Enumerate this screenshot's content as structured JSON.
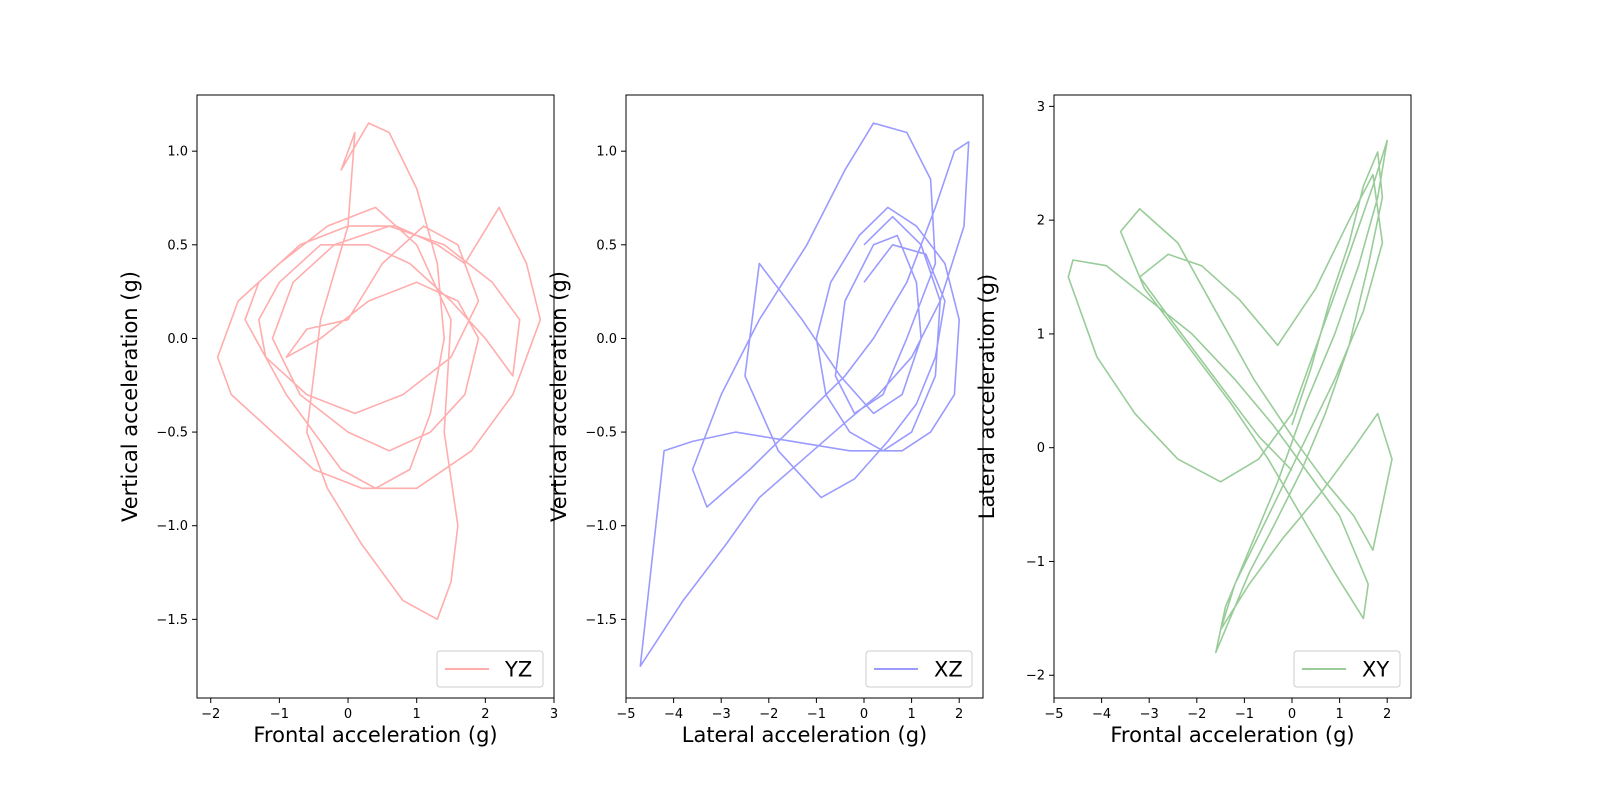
{
  "colors": {
    "yz": "#ffadad",
    "xz": "#9b9bff",
    "xy": "#99cc99"
  },
  "chart_data": [
    {
      "type": "line",
      "xlabel": "Frontal acceleration (g)",
      "ylabel": "Vertical acceleration  (g)",
      "xlim": [
        -2.2,
        3.0
      ],
      "ylim": [
        -1.92,
        1.3
      ],
      "xticks": [
        -2,
        -1,
        0,
        1,
        2,
        3
      ],
      "xtick_labels": [
        "−2",
        "−1",
        "0",
        "1",
        "2",
        "3"
      ],
      "yticks": [
        -1.5,
        -1.0,
        -0.5,
        0.0,
        0.5,
        1.0
      ],
      "ytick_labels": [
        "−1.5",
        "−1.0",
        "−0.5",
        "0.0",
        "0.5",
        "1.0"
      ],
      "legend_position": "lower-right",
      "series": [
        {
          "name": "YZ",
          "color": "#ffadad",
          "x": [
            0.0,
            0.5,
            1.1,
            1.6,
            1.9,
            1.5,
            0.8,
            0.1,
            -0.6,
            -1.2,
            -1.5,
            -1.3,
            -0.7,
            0.0,
            0.7,
            1.3,
            1.7,
            2.2,
            2.6,
            2.8,
            2.4,
            1.8,
            1.0,
            0.2,
            -0.5,
            -1.1,
            -1.7,
            -1.9,
            -1.6,
            -1.0,
            -0.3,
            0.4,
            1.0,
            1.5,
            1.4,
            1.6,
            1.5,
            1.3,
            0.8,
            0.2,
            -0.3,
            -0.6,
            -0.4,
            0.0,
            0.1,
            -0.1,
            0.3,
            0.6,
            1.0,
            1.3,
            1.4,
            1.2,
            0.9,
            0.4,
            -0.1,
            -0.5,
            -0.9,
            -1.2,
            -1.3,
            -1.0,
            -0.4,
            0.3,
            0.9,
            1.5,
            2.0,
            2.4,
            2.5,
            2.1,
            1.4,
            0.6,
            -0.2,
            -0.8,
            -1.1,
            -0.7,
            0.0,
            0.6,
            1.2,
            1.7,
            1.9,
            1.6,
            1.0,
            0.3,
            -0.4,
            -0.9,
            -0.6,
            0.0
          ],
          "y": [
            0.1,
            0.4,
            0.6,
            0.5,
            0.2,
            -0.1,
            -0.3,
            -0.4,
            -0.3,
            -0.1,
            0.1,
            0.3,
            0.5,
            0.6,
            0.6,
            0.5,
            0.4,
            0.7,
            0.4,
            0.1,
            -0.3,
            -0.6,
            -0.8,
            -0.8,
            -0.7,
            -0.5,
            -0.3,
            -0.1,
            0.2,
            0.4,
            0.6,
            0.7,
            0.5,
            0.1,
            -0.5,
            -1.0,
            -1.3,
            -1.5,
            -1.4,
            -1.1,
            -0.8,
            -0.5,
            0.1,
            0.6,
            1.1,
            0.9,
            1.15,
            1.1,
            0.8,
            0.4,
            0.0,
            -0.4,
            -0.7,
            -0.8,
            -0.7,
            -0.5,
            -0.3,
            -0.1,
            0.1,
            0.3,
            0.5,
            0.5,
            0.4,
            0.2,
            0.0,
            -0.2,
            0.1,
            0.3,
            0.5,
            0.6,
            0.5,
            0.3,
            0.0,
            -0.3,
            -0.5,
            -0.6,
            -0.5,
            -0.3,
            0.0,
            0.2,
            0.3,
            0.2,
            0.0,
            -0.1,
            0.05,
            0.1
          ]
        }
      ]
    },
    {
      "type": "line",
      "xlabel": "Lateral acceleration (g)",
      "ylabel": "Vertical acceleration  (g)",
      "xlim": [
        -5.0,
        2.5
      ],
      "ylim": [
        -1.92,
        1.3
      ],
      "xticks": [
        -5,
        -4,
        -3,
        -2,
        -1,
        0,
        1,
        2
      ],
      "xtick_labels": [
        "−5",
        "−4",
        "−3",
        "−2",
        "−1",
        "0",
        "1",
        "2"
      ],
      "yticks": [
        -1.5,
        -1.0,
        -0.5,
        0.0,
        0.5,
        1.0
      ],
      "ytick_labels": [
        "−1.5",
        "−1.0",
        "−0.5",
        "0.0",
        "0.5",
        "1.0"
      ],
      "legend_position": "lower-right",
      "series": [
        {
          "name": "XZ",
          "color": "#9b9bff",
          "x": [
            0.0,
            0.6,
            1.2,
            1.6,
            1.5,
            1.0,
            0.4,
            -0.3,
            -0.8,
            -1.0,
            -0.7,
            -0.1,
            0.5,
            1.1,
            1.7,
            2.0,
            1.9,
            1.4,
            0.8,
            -0.3,
            -1.5,
            -2.7,
            -3.6,
            -4.2,
            -4.7,
            -3.8,
            -2.9,
            -2.2,
            -1.3,
            -0.4,
            0.3,
            1.0,
            1.6,
            2.1,
            2.2,
            1.9,
            1.5,
            0.9,
            0.2,
            -0.4,
            -1.4,
            -2.4,
            -3.3,
            -3.6,
            -3.0,
            -2.2,
            -1.2,
            -0.4,
            0.2,
            0.9,
            1.4,
            1.5,
            0.9,
            0.4,
            -0.2,
            -0.6,
            -0.4,
            0.2,
            0.7,
            1.1,
            1.2,
            0.8,
            0.2,
            -0.5,
            -1.3,
            -2.2,
            -2.5,
            -1.8,
            -0.9,
            -0.2,
            0.5,
            1.1,
            1.5,
            1.7,
            1.3,
            0.6,
            0.0
          ],
          "y": [
            0.5,
            0.65,
            0.5,
            0.2,
            -0.2,
            -0.5,
            -0.6,
            -0.5,
            -0.3,
            0.0,
            0.3,
            0.55,
            0.7,
            0.6,
            0.4,
            0.1,
            -0.3,
            -0.5,
            -0.6,
            -0.6,
            -0.55,
            -0.5,
            -0.55,
            -0.6,
            -1.75,
            -1.4,
            -1.1,
            -0.85,
            -0.65,
            -0.45,
            -0.3,
            -0.1,
            0.2,
            0.6,
            1.05,
            1.0,
            0.7,
            0.3,
            0.0,
            -0.2,
            -0.45,
            -0.7,
            -0.9,
            -0.7,
            -0.3,
            0.1,
            0.5,
            0.9,
            1.15,
            1.1,
            0.85,
            0.4,
            0.0,
            -0.3,
            -0.4,
            -0.2,
            0.2,
            0.5,
            0.55,
            0.3,
            0.0,
            -0.3,
            -0.4,
            -0.2,
            0.1,
            0.4,
            -0.2,
            -0.6,
            -0.85,
            -0.75,
            -0.55,
            -0.35,
            -0.1,
            0.2,
            0.45,
            0.5,
            0.3
          ]
        }
      ]
    },
    {
      "type": "line",
      "xlabel": "Frontal acceleration  (g)",
      "ylabel": "Lateral acceleration (g)",
      "xlim": [
        -5.0,
        2.5
      ],
      "ylim": [
        -2.2,
        3.1
      ],
      "xticks": [
        -5,
        -4,
        -3,
        -2,
        -1,
        0,
        1,
        2
      ],
      "xtick_labels": [
        "−5",
        "−4",
        "−3",
        "−2",
        "−1",
        "0",
        "1",
        "2"
      ],
      "yticks": [
        -2,
        -1,
        0,
        1,
        2,
        3
      ],
      "ytick_labels": [
        "−2",
        "−1",
        "0",
        "1",
        "2",
        "3"
      ],
      "legend_position": "lower-right",
      "series": [
        {
          "name": "XY",
          "color": "#99cc99",
          "x": [
            0.0,
            0.4,
            0.8,
            1.2,
            1.5,
            1.8,
            1.9,
            1.6,
            1.2,
            0.7,
            0.2,
            -0.4,
            -0.9,
            -1.3,
            -1.6,
            -1.4,
            -0.9,
            -0.3,
            0.3,
            0.9,
            1.4,
            1.8,
            2.0,
            1.7,
            1.2,
            0.6,
            0.0,
            -0.7,
            -1.5,
            -2.4,
            -3.3,
            -4.1,
            -4.7,
            -4.6,
            -3.9,
            -3.0,
            -2.1,
            -1.2,
            -0.4,
            0.3,
            1.0,
            1.6,
            1.5,
            0.9,
            0.2,
            -0.5,
            -1.3,
            -2.2,
            -3.1,
            -3.6,
            -3.2,
            -2.4,
            -1.6,
            -0.8,
            0.0,
            0.7,
            1.3,
            1.7,
            2.1,
            1.8,
            1.3,
            0.6,
            -0.2,
            -0.9,
            -1.5,
            -1.2,
            -0.5,
            0.2,
            0.9,
            1.5,
            1.9,
            1.7,
            1.2,
            0.5,
            -0.3,
            -1.1,
            -1.9,
            -2.6,
            -3.2,
            -2.5,
            -1.6,
            -0.7,
            0.0
          ],
          "y": [
            0.2,
            0.7,
            1.3,
            1.8,
            2.3,
            2.6,
            2.2,
            1.6,
            0.9,
            0.3,
            -0.2,
            -0.7,
            -1.1,
            -1.5,
            -1.8,
            -1.4,
            -0.9,
            -0.3,
            0.4,
            1.0,
            1.6,
            2.2,
            2.7,
            2.3,
            1.7,
            1.0,
            0.3,
            -0.1,
            -0.3,
            -0.1,
            0.3,
            0.8,
            1.5,
            1.65,
            1.6,
            1.3,
            1.0,
            0.6,
            0.2,
            -0.2,
            -0.6,
            -1.2,
            -1.5,
            -1.1,
            -0.6,
            -0.1,
            0.4,
            0.9,
            1.4,
            1.9,
            2.1,
            1.8,
            1.2,
            0.6,
            0.1,
            -0.3,
            -0.6,
            -0.9,
            -0.1,
            0.3,
            0.0,
            -0.4,
            -0.8,
            -1.2,
            -1.6,
            -1.2,
            -0.6,
            0.0,
            0.6,
            1.2,
            1.8,
            2.4,
            2.0,
            1.4,
            0.9,
            1.3,
            1.6,
            1.7,
            1.5,
            1.1,
            0.6,
            0.1,
            -0.2
          ]
        }
      ]
    }
  ]
}
